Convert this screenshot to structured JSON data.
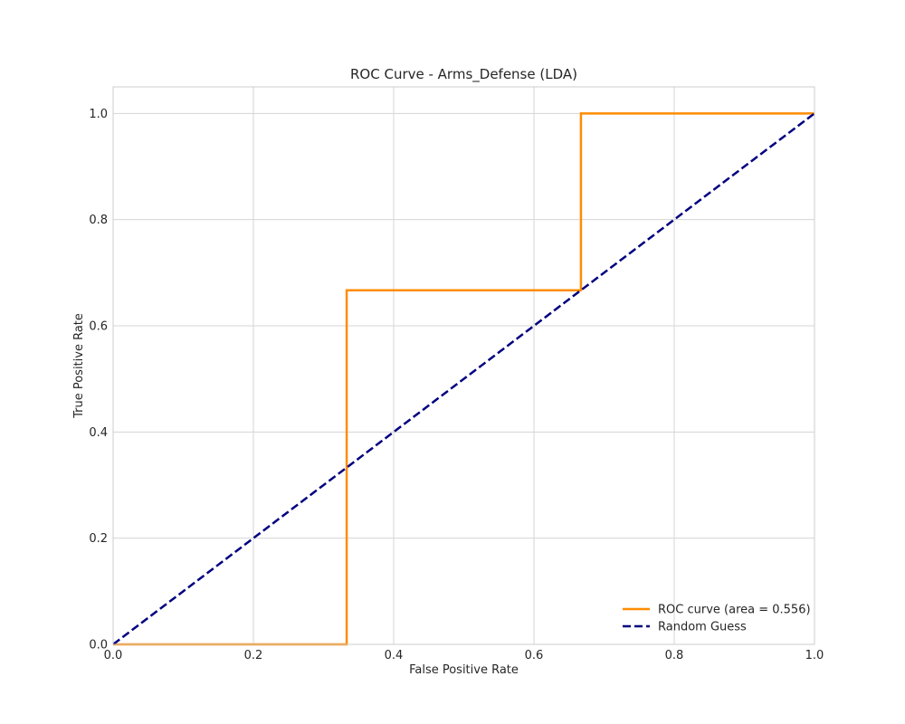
{
  "chart_data": {
    "type": "line",
    "title": "ROC Curve - Arms_Defense (LDA)",
    "xlabel": "False Positive Rate",
    "ylabel": "True Positive Rate",
    "xlim": [
      0.0,
      1.0
    ],
    "ylim": [
      0.0,
      1.05
    ],
    "xticks": [
      0.0,
      0.2,
      0.4,
      0.6,
      0.8,
      1.0
    ],
    "yticks": [
      0.0,
      0.2,
      0.4,
      0.6,
      0.8,
      1.0
    ],
    "xtick_labels": [
      "0.0",
      "0.2",
      "0.4",
      "0.6",
      "0.8",
      "1.0"
    ],
    "ytick_labels": [
      "0.0",
      "0.2",
      "0.4",
      "0.6",
      "0.8",
      "1.0"
    ],
    "grid": true,
    "legend_position": "lower-right",
    "series": [
      {
        "name": "ROC curve (area = 0.556)",
        "color": "#ff8c00",
        "style": "solid",
        "x": [
          0.0,
          0.333,
          0.333,
          0.667,
          0.667,
          1.0
        ],
        "y": [
          0.0,
          0.0,
          0.667,
          0.667,
          1.0,
          1.0
        ]
      },
      {
        "name": "Random Guess",
        "color": "#000080",
        "style": "dashed",
        "x": [
          0.0,
          1.0
        ],
        "y": [
          0.0,
          1.0
        ]
      }
    ]
  }
}
